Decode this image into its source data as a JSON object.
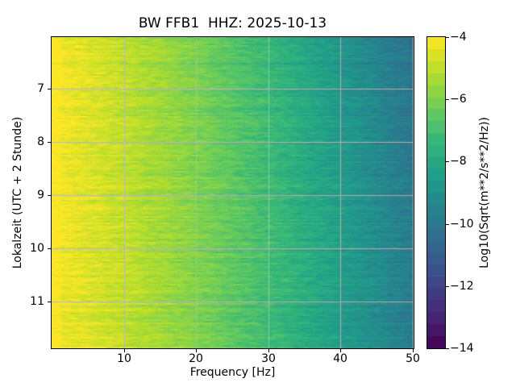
{
  "chart_data": {
    "type": "heatmap",
    "subtype": "seismic-spectrogram",
    "title": "BW FFB1  HHZ: 2025-10-13",
    "xlabel": "Frequency [Hz]",
    "ylabel": "Lokalzeit (UTC + 2 Stunde)",
    "xlim": [
      0,
      50.1
    ],
    "ylim": [
      6.03,
      11.87
    ],
    "x_ticks": [
      10,
      20,
      30,
      40,
      50
    ],
    "x_tick_labels": [
      "10",
      "20",
      "30",
      "40",
      "50"
    ],
    "y_ticks": [
      7,
      8,
      9,
      10,
      11
    ],
    "y_tick_labels": [
      "7",
      "8",
      "9",
      "10",
      "11"
    ],
    "grid": true,
    "grid_color": "rgba(183,183,183,0.9)",
    "colormap": "viridis",
    "colormap_stops": [
      "#440154",
      "#482878",
      "#3e4989",
      "#31688e",
      "#26828e",
      "#1f9e89",
      "#35b779",
      "#6ece58",
      "#b5de2b",
      "#fde725"
    ],
    "colorbar": {
      "label": "Log10(Sqrt(m**2/s**2/Hz))",
      "vmin": -14,
      "vmax": -4,
      "ticks": [
        -4,
        -6,
        -8,
        -10,
        -12,
        -14
      ],
      "tick_labels": [
        "−4",
        "−6",
        "−8",
        "−10",
        "−12",
        "−14"
      ],
      "segments": 26
    },
    "mean_profile": {
      "frequency_hz": [
        0,
        2,
        5,
        10,
        15,
        20,
        25,
        30,
        35,
        40,
        45,
        50
      ],
      "log10_sqrt_psd": [
        -4.1,
        -4.25,
        -4.5,
        -4.9,
        -5.4,
        -5.9,
        -6.5,
        -7.1,
        -7.75,
        -8.4,
        -9.1,
        -9.8
      ]
    },
    "noise": {
      "row_amplitude": 0.5,
      "cell_amplitude": 1.15,
      "streak_chance": 0.08,
      "seed": 1234
    },
    "low_freq_boost": 0.25,
    "top_darkening_at_nyquist": 0.5
  }
}
